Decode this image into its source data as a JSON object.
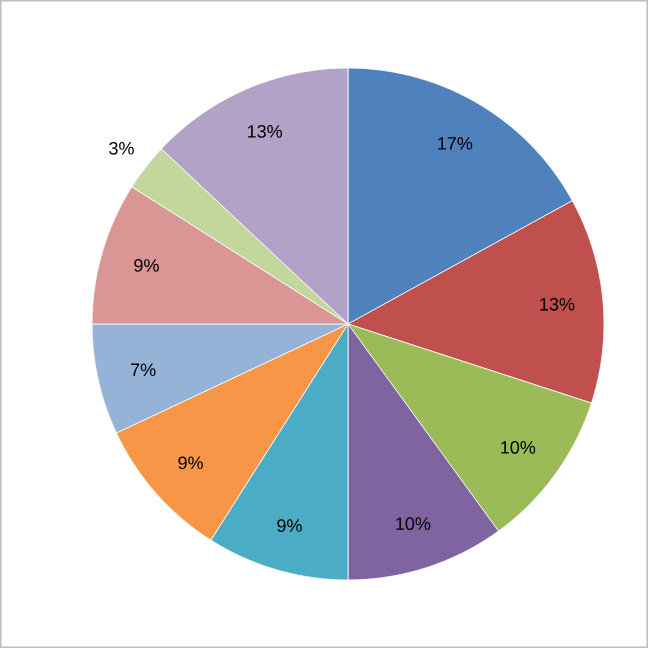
{
  "chart_data": {
    "type": "pie",
    "categories": [
      null,
      null,
      null,
      null,
      null,
      null,
      null,
      null,
      null,
      null
    ],
    "values": [
      17,
      13,
      10,
      10,
      9,
      9,
      7,
      9,
      3,
      13
    ],
    "colors": [
      "#4f81bd",
      "#c0504d",
      "#9bbb59",
      "#8064a2",
      "#4bacc6",
      "#f79646",
      "#95b3d7",
      "#d99694",
      "#c3d69b",
      "#b3a2c7"
    ],
    "value_labels": [
      "17%",
      "13%",
      "10%",
      "10%",
      "9%",
      "9%",
      "7%",
      "9%",
      "3%",
      "13%"
    ]
  }
}
